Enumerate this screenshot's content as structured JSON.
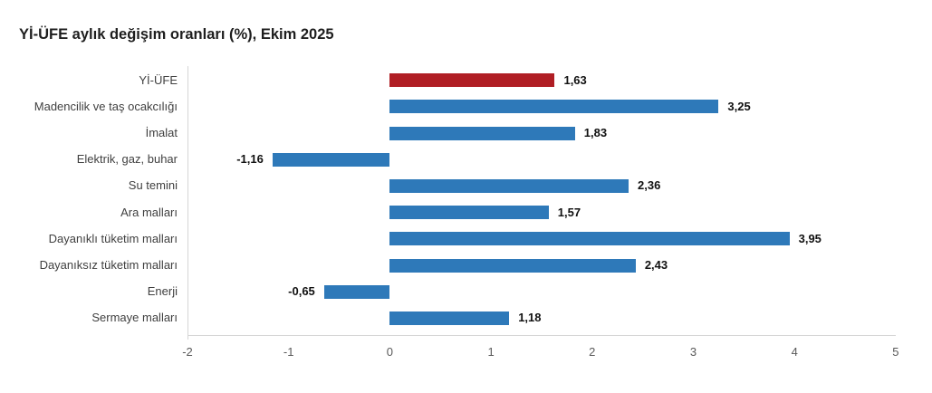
{
  "title": "Yİ-ÜFE aylık değişim oranları (%), Ekim 2025",
  "colors": {
    "bar_default": "#2e79b9",
    "bar_highlight": "#b01e24",
    "axis_line": "#d6d6d6",
    "category_text": "#404040",
    "value_text": "#111111",
    "tick_text": "#595959",
    "title_text": "#1e1e1e",
    "background": "#ffffff"
  },
  "chart_data": {
    "type": "bar",
    "orientation": "horizontal",
    "title": "Yİ-ÜFE aylık değişim oranları (%), Ekim 2025",
    "categories": [
      "Yİ-ÜFE",
      "Madencilik ve taş ocakcılığı",
      "İmalat",
      "Elektrik, gaz, buhar",
      "Su temini",
      "Ara malları",
      "Dayanıklı tüketim malları",
      "Dayanıksız tüketim malları",
      "Enerji",
      "Sermaye malları"
    ],
    "values": [
      1.63,
      3.25,
      1.83,
      -1.16,
      2.36,
      1.57,
      3.95,
      2.43,
      -0.65,
      1.18
    ],
    "value_labels": [
      "1,63",
      "3,25",
      "1,83",
      "-1,16",
      "2,36",
      "1,57",
      "3,95",
      "2,43",
      "-0,65",
      "1,18"
    ],
    "highlight_index": 0,
    "xlabel": "",
    "ylabel": "",
    "xlim": [
      -2,
      5
    ],
    "x_ticks": [
      "-2",
      "-1",
      "0",
      "1",
      "2",
      "3",
      "4",
      "5"
    ],
    "grid": false,
    "legend": false
  }
}
